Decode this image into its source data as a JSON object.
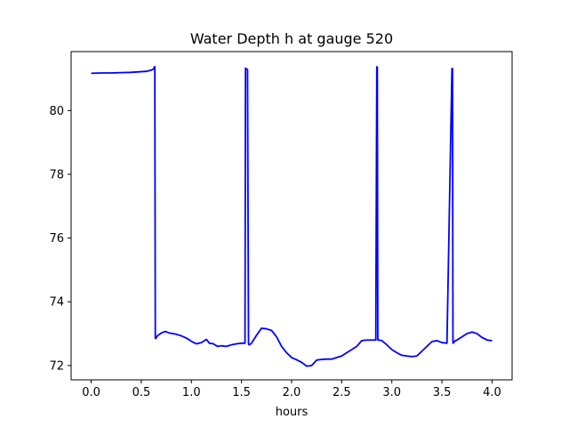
{
  "chart_data": {
    "type": "line",
    "title": "Water Depth h at gauge 520",
    "xlabel": "hours",
    "ylabel": "",
    "xlim": [
      -0.2,
      4.2
    ],
    "ylim": [
      71.55,
      81.85
    ],
    "xticks": [
      0.0,
      0.5,
      1.0,
      1.5,
      2.0,
      2.5,
      3.0,
      3.5,
      4.0
    ],
    "xtick_labels": [
      "0.0",
      "0.5",
      "1.0",
      "1.5",
      "2.0",
      "2.5",
      "3.0",
      "3.5",
      "4.0"
    ],
    "yticks": [
      72,
      74,
      76,
      78,
      80
    ],
    "ytick_labels": [
      "72",
      "74",
      "76",
      "78",
      "80"
    ],
    "grid": false,
    "line_color": "#0000ff",
    "series": [
      {
        "x": [
          0.0,
          0.1,
          0.2,
          0.3,
          0.4,
          0.5,
          0.55,
          0.6,
          0.62,
          0.635,
          0.64,
          0.645,
          0.66,
          0.7,
          0.74,
          0.78,
          0.82,
          0.86,
          0.9,
          0.95,
          1.0,
          1.05,
          1.1,
          1.15,
          1.18,
          1.22,
          1.26,
          1.3,
          1.35,
          1.4,
          1.45,
          1.5,
          1.535,
          1.54,
          1.545,
          1.555,
          1.56,
          1.57,
          1.575,
          1.58,
          1.6,
          1.65,
          1.7,
          1.75,
          1.8,
          1.85,
          1.9,
          1.95,
          2.0,
          2.05,
          2.1,
          2.15,
          2.2,
          2.25,
          2.3,
          2.35,
          2.4,
          2.45,
          2.5,
          2.55,
          2.6,
          2.65,
          2.7,
          2.75,
          2.8,
          2.84,
          2.85,
          2.855,
          2.86,
          2.865,
          2.87,
          2.9,
          2.95,
          3.0,
          3.05,
          3.1,
          3.15,
          3.2,
          3.25,
          3.3,
          3.35,
          3.4,
          3.45,
          3.5,
          3.55,
          3.6,
          3.605,
          3.61,
          3.615,
          3.62,
          3.625,
          3.65,
          3.7,
          3.75,
          3.8,
          3.85,
          3.9,
          3.95,
          4.0
        ],
        "y": [
          81.17,
          81.18,
          81.18,
          81.19,
          81.2,
          81.22,
          81.23,
          81.27,
          81.3,
          81.38,
          72.85,
          72.85,
          72.93,
          73.02,
          73.07,
          73.02,
          73.0,
          72.97,
          72.93,
          72.86,
          72.76,
          72.68,
          72.72,
          72.82,
          72.7,
          72.68,
          72.6,
          72.62,
          72.6,
          72.65,
          72.68,
          72.7,
          72.7,
          81.33,
          81.32,
          81.3,
          81.28,
          72.68,
          72.65,
          72.65,
          72.7,
          72.95,
          73.17,
          73.15,
          73.1,
          72.9,
          72.6,
          72.4,
          72.25,
          72.18,
          72.1,
          71.98,
          72.0,
          72.17,
          72.19,
          72.2,
          72.2,
          72.25,
          72.3,
          72.4,
          72.5,
          72.6,
          72.78,
          72.8,
          72.8,
          72.8,
          81.37,
          81.37,
          72.8,
          72.8,
          72.8,
          72.78,
          72.65,
          72.5,
          72.4,
          72.32,
          72.3,
          72.28,
          72.3,
          72.45,
          72.6,
          72.75,
          72.78,
          72.72,
          72.7,
          81.32,
          81.32,
          72.7,
          72.72,
          72.72,
          72.76,
          72.8,
          72.9,
          73.0,
          73.05,
          73.0,
          72.88,
          72.8,
          72.78
        ]
      }
    ]
  }
}
